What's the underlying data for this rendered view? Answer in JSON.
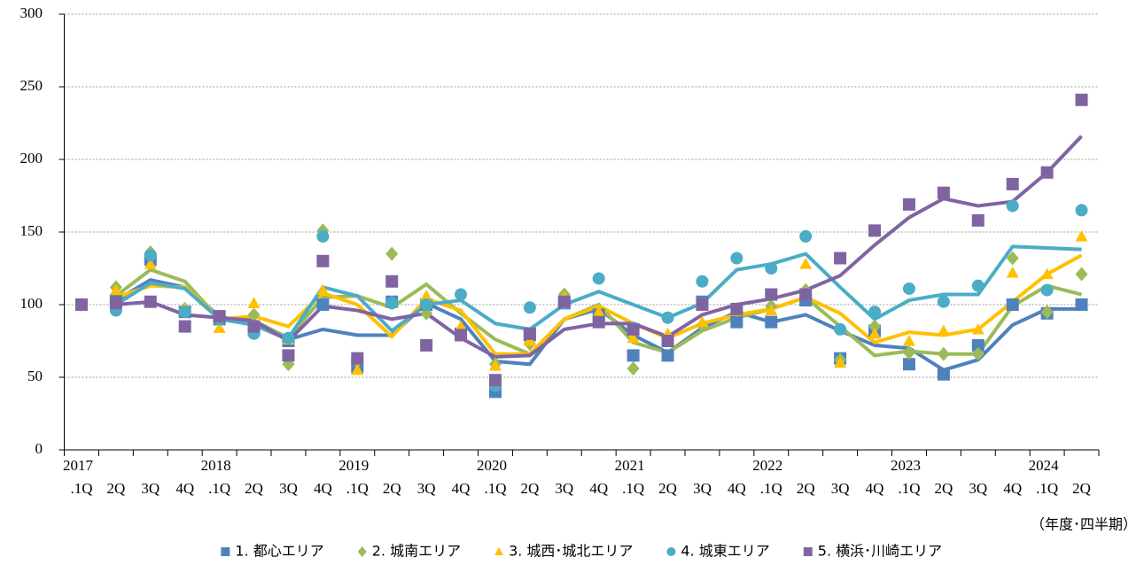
{
  "chart_data": {
    "type": "scatter-trend",
    "x_label": "（年度･四半期）",
    "categories": [
      "2017\n.1Q",
      "2Q",
      "3Q",
      "4Q",
      "2018\n.1Q",
      "2Q",
      "3Q",
      "4Q",
      "2019\n.1Q",
      "2Q",
      "3Q",
      "4Q",
      "2020\n.1Q",
      "2Q",
      "3Q",
      "4Q",
      "2021\n.1Q",
      "2Q",
      "3Q",
      "4Q",
      "2022\n.1Q",
      "2Q",
      "3Q",
      "4Q",
      "2023\n.1Q",
      "2Q",
      "3Q",
      "4Q",
      "2024\n.1Q",
      "2Q"
    ],
    "ylim": [
      0,
      300
    ],
    "yticks": [
      0,
      50,
      100,
      150,
      200,
      250,
      300
    ],
    "grid": true,
    "series": [
      {
        "name": "1. 都心エリア",
        "color": "#4f81bd",
        "marker": "square",
        "values": [
          100,
          103,
          131,
          95,
          90,
          83,
          75,
          100,
          57,
          102,
          100,
          80,
          40,
          79,
          101,
          93,
          65,
          65,
          102,
          88,
          88,
          103,
          63,
          82,
          59,
          52,
          72,
          100,
          94,
          100
        ],
        "trend": [
          null,
          103,
          117,
          112,
          92,
          86,
          76,
          83,
          79,
          79,
          101,
          90,
          61,
          59,
          90,
          97,
          79,
          67,
          84,
          95,
          88,
          93,
          82,
          72,
          70,
          55,
          62,
          86,
          97,
          97
        ]
      },
      {
        "name": "2. 城南エリア",
        "color": "#9bbb59",
        "marker": "diamond",
        "values": [
          100,
          112,
          136,
          97,
          91,
          93,
          59,
          151,
          61,
          135,
          94,
          80,
          59,
          73,
          107,
          92,
          56,
          78,
          86,
          96,
          99,
          110,
          62,
          85,
          67,
          66,
          66,
          132,
          95,
          121
        ],
        "trend": [
          null,
          106,
          124,
          116,
          90,
          89,
          77,
          105,
          106,
          98,
          114,
          94,
          76,
          66,
          90,
          100,
          74,
          67,
          82,
          91,
          97,
          105,
          85,
          65,
          68,
          66,
          66,
          99,
          113,
          107
        ]
      },
      {
        "name": "3. 城西･城北エリア",
        "color": "#ffc000",
        "marker": "triangle",
        "values": [
          100,
          110,
          128,
          97,
          84,
          101,
          76,
          110,
          55,
          102,
          106,
          85,
          58,
          75,
          105,
          95,
          77,
          80,
          88,
          96,
          96,
          128,
          60,
          80,
          75,
          82,
          83,
          122,
          121,
          147
        ],
        "trend": [
          null,
          105,
          113,
          112,
          90,
          92,
          85,
          108,
          100,
          78,
          104,
          96,
          66,
          66,
          90,
          99,
          87,
          77,
          87,
          93,
          97,
          105,
          94,
          74,
          81,
          79,
          83,
          102,
          121,
          134
        ]
      },
      {
        "name": "4. 城東エリア",
        "color": "#4bacc6",
        "marker": "circle",
        "values": [
          100,
          96,
          134,
          95,
          90,
          80,
          77,
          147,
          63,
          101,
          100,
          107,
          44,
          98,
          101,
          118,
          84,
          91,
          116,
          132,
          125,
          147,
          83,
          95,
          111,
          102,
          113,
          168,
          110,
          165
        ],
        "trend": [
          null,
          100,
          115,
          111,
          90,
          86,
          77,
          112,
          106,
          82,
          100,
          103,
          87,
          83,
          100,
          109,
          100,
          91,
          101,
          124,
          128,
          135,
          112,
          90,
          103,
          107,
          107,
          140,
          139,
          138
        ]
      },
      {
        "name": "5. 横浜･川崎エリア",
        "color": "#8064a2",
        "marker": "square",
        "values": [
          100,
          101,
          102,
          85,
          92,
          85,
          65,
          130,
          63,
          116,
          72,
          79,
          48,
          80,
          102,
          88,
          83,
          75,
          100,
          97,
          107,
          107,
          132,
          151,
          169,
          177,
          158,
          183,
          191,
          241
        ],
        "trend": [
          null,
          100,
          102,
          93,
          91,
          89,
          75,
          99,
          96,
          90,
          94,
          77,
          64,
          65,
          83,
          87,
          87,
          78,
          93,
          100,
          104,
          110,
          120,
          141,
          160,
          173,
          168,
          171,
          191,
          216
        ]
      }
    ]
  }
}
